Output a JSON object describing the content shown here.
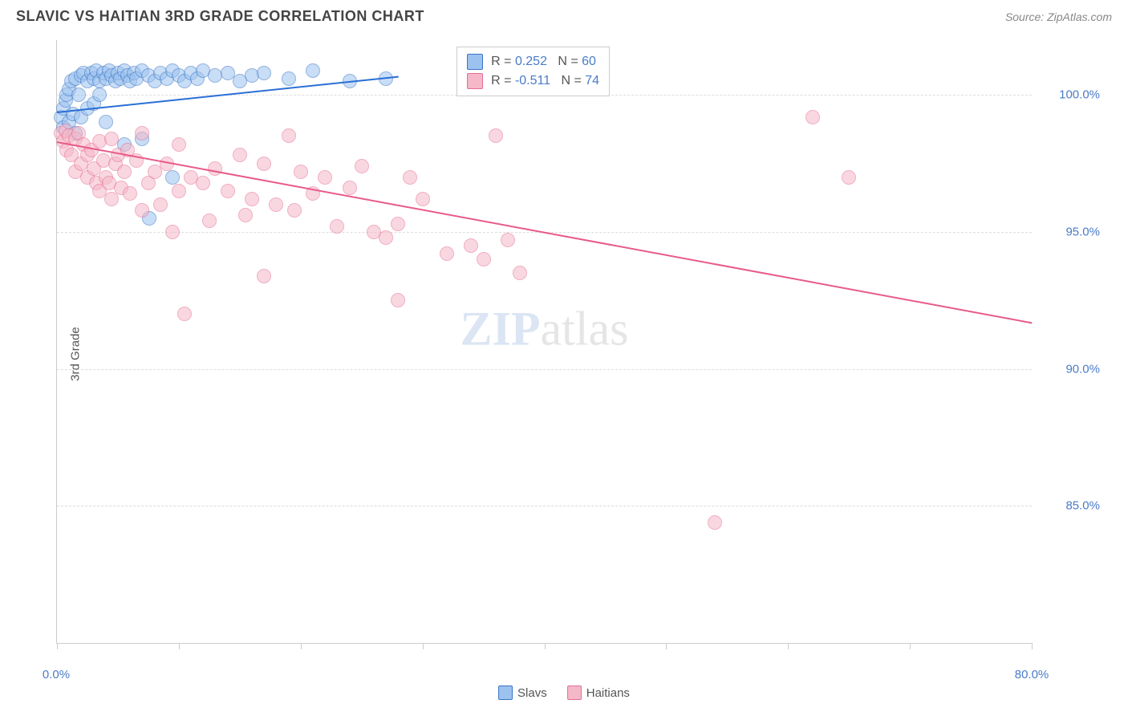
{
  "title": "SLAVIC VS HAITIAN 3RD GRADE CORRELATION CHART",
  "source": "Source: ZipAtlas.com",
  "y_axis_label": "3rd Grade",
  "watermark_zip": "ZIP",
  "watermark_atlas": "atlas",
  "chart": {
    "type": "scatter",
    "xlim": [
      0,
      80
    ],
    "ylim": [
      80,
      102
    ],
    "background_color": "#ffffff",
    "grid_color": "#dddddd",
    "axis_color": "#cccccc",
    "tick_label_color": "#4a7bc8",
    "tick_fontsize": 15,
    "y_gridlines": [
      85,
      90,
      95,
      100
    ],
    "y_tick_labels": [
      "85.0%",
      "90.0%",
      "95.0%",
      "100.0%"
    ],
    "x_ticks": [
      0,
      10,
      20,
      30,
      40,
      50,
      60,
      70,
      80
    ],
    "x_tick_labels": {
      "0": "0.0%",
      "80": "80.0%"
    },
    "marker_size": 18,
    "marker_opacity": 0.55,
    "series": [
      {
        "name": "Slavs",
        "fill_color": "#9cc2f0",
        "stroke_color": "#3a75c4",
        "trend_color": "#2a6fd6",
        "trend_width": 2,
        "R": "0.252",
        "N": "60",
        "trend": {
          "x1": 0,
          "y1": 99.4,
          "x2": 28,
          "y2": 100.7
        },
        "points": [
          [
            0.3,
            99.2
          ],
          [
            0.5,
            99.5
          ],
          [
            0.5,
            98.8
          ],
          [
            0.7,
            99.8
          ],
          [
            0.8,
            100.0
          ],
          [
            1.0,
            99.0
          ],
          [
            1.0,
            100.2
          ],
          [
            1.2,
            100.5
          ],
          [
            1.3,
            99.3
          ],
          [
            1.5,
            100.6
          ],
          [
            1.5,
            98.6
          ],
          [
            1.8,
            100.0
          ],
          [
            2.0,
            100.7
          ],
          [
            2.0,
            99.2
          ],
          [
            2.2,
            100.8
          ],
          [
            2.5,
            100.5
          ],
          [
            2.5,
            99.5
          ],
          [
            2.8,
            100.8
          ],
          [
            3.0,
            100.6
          ],
          [
            3.0,
            99.7
          ],
          [
            3.2,
            100.9
          ],
          [
            3.5,
            100.5
          ],
          [
            3.5,
            100.0
          ],
          [
            3.8,
            100.8
          ],
          [
            4.0,
            100.6
          ],
          [
            4.0,
            99.0
          ],
          [
            4.3,
            100.9
          ],
          [
            4.5,
            100.7
          ],
          [
            4.8,
            100.5
          ],
          [
            5.0,
            100.8
          ],
          [
            5.2,
            100.6
          ],
          [
            5.5,
            100.9
          ],
          [
            5.5,
            98.2
          ],
          [
            5.8,
            100.7
          ],
          [
            6.0,
            100.5
          ],
          [
            6.3,
            100.8
          ],
          [
            6.5,
            100.6
          ],
          [
            7.0,
            100.9
          ],
          [
            7.0,
            98.4
          ],
          [
            7.5,
            100.7
          ],
          [
            7.6,
            95.5
          ],
          [
            8.0,
            100.5
          ],
          [
            8.5,
            100.8
          ],
          [
            9.0,
            100.6
          ],
          [
            9.5,
            100.9
          ],
          [
            9.5,
            97.0
          ],
          [
            10.0,
            100.7
          ],
          [
            10.5,
            100.5
          ],
          [
            11.0,
            100.8
          ],
          [
            11.5,
            100.6
          ],
          [
            12.0,
            100.9
          ],
          [
            13.0,
            100.7
          ],
          [
            14.0,
            100.8
          ],
          [
            15.0,
            100.5
          ],
          [
            16.0,
            100.7
          ],
          [
            17.0,
            100.8
          ],
          [
            19.0,
            100.6
          ],
          [
            21.0,
            100.9
          ],
          [
            24.0,
            100.5
          ],
          [
            27.0,
            100.6
          ]
        ]
      },
      {
        "name": "Haitians",
        "fill_color": "#f5b8c8",
        "stroke_color": "#e66d94",
        "trend_color": "#e85a8a",
        "trend_width": 2,
        "R": "-0.511",
        "N": "74",
        "trend": {
          "x1": 0,
          "y1": 98.3,
          "x2": 80,
          "y2": 91.7
        },
        "points": [
          [
            0.3,
            98.6
          ],
          [
            0.5,
            98.3
          ],
          [
            0.7,
            98.7
          ],
          [
            0.8,
            98.0
          ],
          [
            1.0,
            98.5
          ],
          [
            1.2,
            97.8
          ],
          [
            1.5,
            98.4
          ],
          [
            1.5,
            97.2
          ],
          [
            1.8,
            98.6
          ],
          [
            2.0,
            97.5
          ],
          [
            2.2,
            98.2
          ],
          [
            2.5,
            97.8
          ],
          [
            2.5,
            97.0
          ],
          [
            2.8,
            98.0
          ],
          [
            3.0,
            97.3
          ],
          [
            3.2,
            96.8
          ],
          [
            3.5,
            98.3
          ],
          [
            3.5,
            96.5
          ],
          [
            3.8,
            97.6
          ],
          [
            4.0,
            97.0
          ],
          [
            4.3,
            96.8
          ],
          [
            4.5,
            98.4
          ],
          [
            4.5,
            96.2
          ],
          [
            4.8,
            97.5
          ],
          [
            5.0,
            97.8
          ],
          [
            5.3,
            96.6
          ],
          [
            5.5,
            97.2
          ],
          [
            5.8,
            98.0
          ],
          [
            6.0,
            96.4
          ],
          [
            6.5,
            97.6
          ],
          [
            7.0,
            95.8
          ],
          [
            7.0,
            98.6
          ],
          [
            7.5,
            96.8
          ],
          [
            8.0,
            97.2
          ],
          [
            8.5,
            96.0
          ],
          [
            9.0,
            97.5
          ],
          [
            9.5,
            95.0
          ],
          [
            10.0,
            98.2
          ],
          [
            10.0,
            96.5
          ],
          [
            10.5,
            92.0
          ],
          [
            11.0,
            97.0
          ],
          [
            12.0,
            96.8
          ],
          [
            12.5,
            95.4
          ],
          [
            13.0,
            97.3
          ],
          [
            14.0,
            96.5
          ],
          [
            15.0,
            97.8
          ],
          [
            15.5,
            95.6
          ],
          [
            16.0,
            96.2
          ],
          [
            17.0,
            97.5
          ],
          [
            17.0,
            93.4
          ],
          [
            18.0,
            96.0
          ],
          [
            19.0,
            98.5
          ],
          [
            19.5,
            95.8
          ],
          [
            20.0,
            97.2
          ],
          [
            21.0,
            96.4
          ],
          [
            22.0,
            97.0
          ],
          [
            23.0,
            95.2
          ],
          [
            24.0,
            96.6
          ],
          [
            25.0,
            97.4
          ],
          [
            26.0,
            95.0
          ],
          [
            27.0,
            94.8
          ],
          [
            28.0,
            95.3
          ],
          [
            28.0,
            92.5
          ],
          [
            29.0,
            97.0
          ],
          [
            30.0,
            96.2
          ],
          [
            32.0,
            94.2
          ],
          [
            34.0,
            94.5
          ],
          [
            35.0,
            94.0
          ],
          [
            36.0,
            98.5
          ],
          [
            37.0,
            94.7
          ],
          [
            38.0,
            93.5
          ],
          [
            54.0,
            84.4
          ],
          [
            62.0,
            99.2
          ],
          [
            65.0,
            97.0
          ]
        ]
      }
    ]
  },
  "legend_box": {
    "left_pct": 41,
    "top_pct": 1
  },
  "bottom_legend": {
    "items": [
      {
        "label": "Slavs",
        "fill": "#9cc2f0",
        "stroke": "#3a75c4"
      },
      {
        "label": "Haitians",
        "fill": "#f5b8c8",
        "stroke": "#e66d94"
      }
    ]
  }
}
